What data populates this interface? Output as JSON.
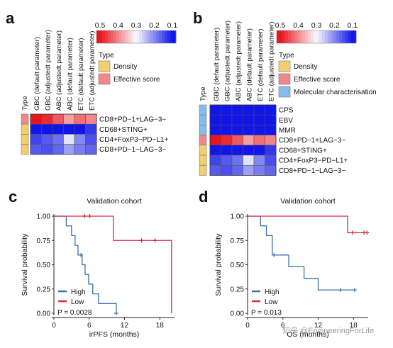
{
  "colors": {
    "density": "#f5cf6e",
    "effective": "#f0888b",
    "molecular": "#86bbee",
    "high": "#3a72aa",
    "low": "#d42a42"
  },
  "panels": {
    "a": {
      "label": "a",
      "columns": [
        "GBC (default parameter)",
        "GBC (adjustedt parameter)",
        "ABC (adjustedt parameter)",
        "ABC (default parameter)",
        "ETC (default parameter)",
        "ETC (adjustedt parameter)"
      ],
      "type_header": "Type",
      "rows": [
        {
          "label": "CD8+PD−1+LAG−3−",
          "type": "effective",
          "values": [
            0.5,
            0.48,
            0.44,
            0.38,
            0.42,
            0.4
          ]
        },
        {
          "label": "CD68+STING+",
          "type": "density",
          "values": [
            0.08,
            0.05,
            0.09,
            0.04,
            0.1,
            0.13
          ]
        },
        {
          "label": "CD4+FoxP3−PD−L1+",
          "type": "density",
          "values": [
            0.14,
            0.16,
            0.18,
            0.28,
            0.2,
            0.15
          ]
        },
        {
          "label": "CD8+PD−1−LAG−3−",
          "type": "density",
          "values": [
            0.16,
            0.15,
            0.17,
            0.22,
            0.19,
            0.17
          ]
        }
      ],
      "scale_ticks": [
        "0.5",
        "0.4",
        "0.3",
        "0.2",
        "0.1"
      ],
      "legend_title": "Type",
      "legend_items": [
        {
          "label": "Density",
          "type": "density"
        },
        {
          "label": "Effective score",
          "type": "effective"
        }
      ]
    },
    "b": {
      "label": "b",
      "columns": [
        "GBC (default parameter)",
        "GBC (adjustedt parameter)",
        "ABC (adjustedt parameter)",
        "ABC (default parameter)",
        "ETC (default parameter)",
        "ETC (adjustedt parameter)"
      ],
      "type_header": "Type",
      "rows": [
        {
          "label": "CPS",
          "type": "molecular",
          "values": [
            0.06,
            0.05,
            0.07,
            0.06,
            0.08,
            0.09
          ]
        },
        {
          "label": "EBV",
          "type": "molecular",
          "values": [
            0.05,
            0.06,
            0.05,
            0.07,
            0.06,
            0.08
          ]
        },
        {
          "label": "MMR",
          "type": "molecular",
          "values": [
            0.07,
            0.08,
            0.06,
            0.09,
            0.07,
            0.1
          ]
        },
        {
          "label": "CD8+PD−1+LAG−3−",
          "type": "effective",
          "values": [
            0.5,
            0.48,
            0.44,
            0.38,
            0.42,
            0.4
          ]
        },
        {
          "label": "CD68+STING+",
          "type": "density",
          "values": [
            0.08,
            0.05,
            0.09,
            0.04,
            0.1,
            0.13
          ]
        },
        {
          "label": "CD4+FoxP3−PD−L1+",
          "type": "density",
          "values": [
            0.14,
            0.16,
            0.18,
            0.28,
            0.2,
            0.15
          ]
        },
        {
          "label": "CD8+PD−1−LAG−3−",
          "type": "density",
          "values": [
            0.16,
            0.15,
            0.17,
            0.22,
            0.19,
            0.17
          ]
        }
      ],
      "scale_ticks": [
        "0.5",
        "0.4",
        "0.3",
        "0.2",
        "0.1"
      ],
      "legend_title": "Type",
      "legend_items": [
        {
          "label": "Density",
          "type": "density"
        },
        {
          "label": "Effective score",
          "type": "effective"
        },
        {
          "label": "Molecular characterisation",
          "type": "molecular"
        }
      ]
    },
    "c": {
      "label": "c",
      "title": "Validation cohort",
      "xlabel": "irPFS (months)",
      "ylabel": "Survival probability",
      "pvalue": "P = 0.0028"
    },
    "d": {
      "label": "d",
      "title": "Validation cohort",
      "xlabel": "OS (months)",
      "ylabel": "Survival probability",
      "pvalue": "P = 0.013"
    }
  },
  "chart_data": [
    {
      "type": "line",
      "panel": "c",
      "title": "Validation cohort",
      "xlabel": "irPFS (months)",
      "ylabel": "Survival probability",
      "xlim": [
        0,
        20.5
      ],
      "ylim": [
        0,
        1
      ],
      "xticks": [
        "0",
        "6",
        "12",
        "18"
      ],
      "yticks": [
        "0.00",
        "0.25",
        "0.50",
        "0.75",
        "1.00"
      ],
      "legend": "bottom-left",
      "series": [
        {
          "name": "High",
          "color": "#3a72aa",
          "steps": [
            [
              0,
              1.0
            ],
            [
              2.1,
              0.9
            ],
            [
              3.0,
              0.8
            ],
            [
              3.6,
              0.7
            ],
            [
              4.1,
              0.6
            ],
            [
              4.8,
              0.5
            ],
            [
              5.3,
              0.4
            ],
            [
              5.9,
              0.3
            ],
            [
              6.6,
              0.2
            ],
            [
              7.6,
              0.1
            ],
            [
              10.6,
              0.0
            ]
          ],
          "censored": [
            [
              4.6,
              0.6
            ],
            [
              10.6,
              0.0
            ]
          ]
        },
        {
          "name": "Low",
          "color": "#d42a42",
          "steps": [
            [
              0,
              1.0
            ],
            [
              10.1,
              0.75
            ],
            [
              20.0,
              0.0
            ]
          ],
          "censored": [
            [
              5.2,
              1.0
            ],
            [
              6.1,
              1.0
            ],
            [
              14.9,
              0.75
            ],
            [
              17.2,
              0.75
            ]
          ]
        }
      ],
      "annotations": [
        "P = 0.0028"
      ]
    },
    {
      "type": "line",
      "panel": "d",
      "title": "Validation cohort",
      "xlabel": "OS (months)",
      "ylabel": "Survival probability",
      "xlim": [
        0,
        20.5
      ],
      "ylim": [
        0,
        1
      ],
      "xticks": [
        "0",
        "6",
        "12",
        "18"
      ],
      "yticks": [
        "0.00",
        "0.25",
        "0.50",
        "0.75",
        "1.00"
      ],
      "legend": "bottom-left",
      "series": [
        {
          "name": "High",
          "color": "#3a72aa",
          "steps": [
            [
              0,
              1.0
            ],
            [
              2.2,
              0.9
            ],
            [
              3.2,
              0.8
            ],
            [
              4.2,
              0.6
            ],
            [
              7.0,
              0.48
            ],
            [
              9.6,
              0.36
            ],
            [
              12.0,
              0.24
            ],
            [
              18.3,
              0.24
            ]
          ],
          "censored": [
            [
              4.5,
              0.6
            ],
            [
              15.8,
              0.24
            ],
            [
              18.2,
              0.24
            ]
          ]
        },
        {
          "name": "Low",
          "color": "#d42a42",
          "steps": [
            [
              0,
              1.0
            ],
            [
              17.0,
              0.83
            ],
            [
              20.6,
              0.83
            ]
          ],
          "censored": [
            [
              17.8,
              0.83
            ],
            [
              19.8,
              0.83
            ],
            [
              20.3,
              0.83
            ]
          ]
        }
      ],
      "annotations": [
        "P = 0.013"
      ]
    }
  ],
  "watermark": "知乎 @EngineeringForLife"
}
